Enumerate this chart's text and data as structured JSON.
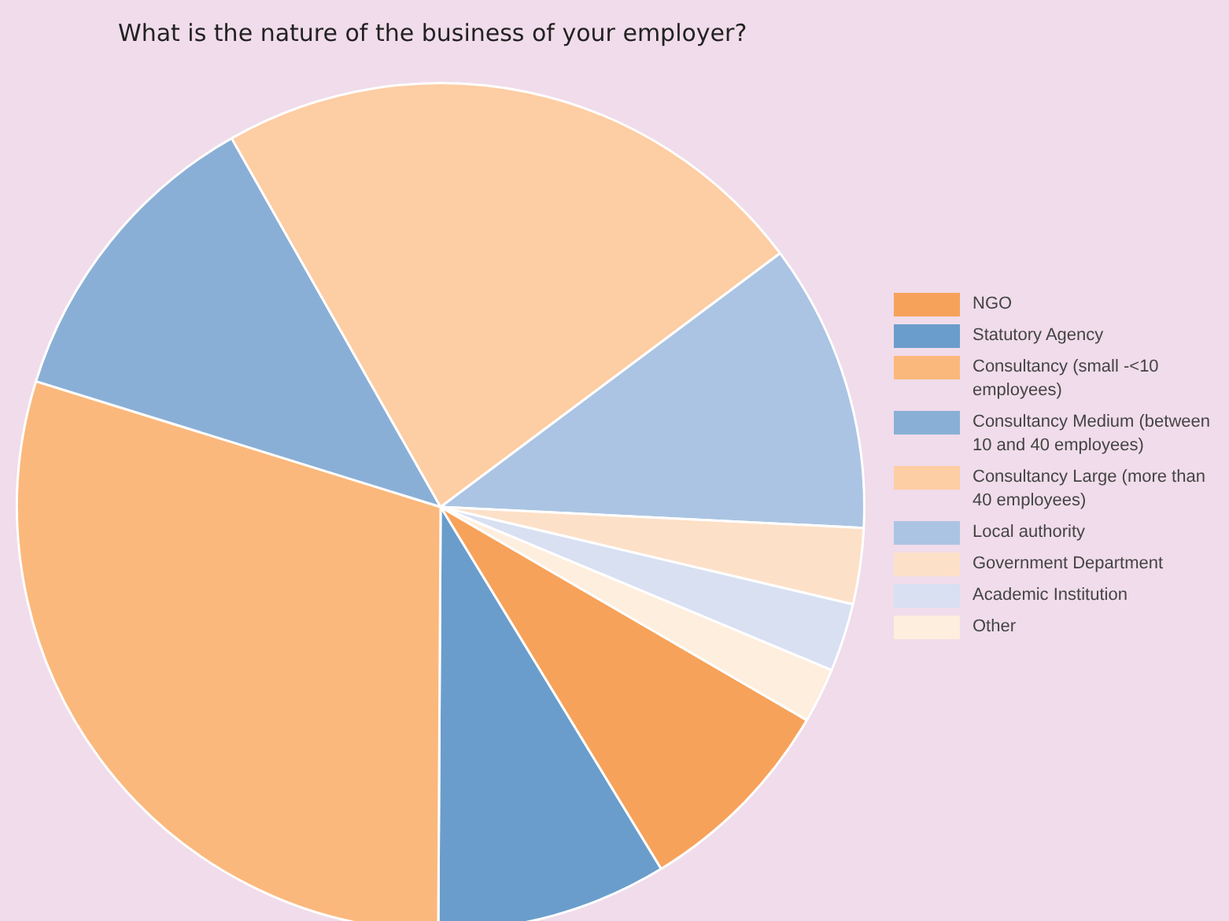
{
  "chart_data": {
    "type": "pie",
    "title": "What is the nature of the business of your employer?",
    "categories": [
      "NGO",
      "Statutory Agency",
      "Consultancy (small -<10 employees)",
      "Consultancy Medium (between 10 and 40 employees)",
      "Consultancy Large (more than 40 employees)",
      "Local authority",
      "Government Department",
      "Academic Institution",
      "Other"
    ],
    "values": [
      7.9,
      8.8,
      29.7,
      12,
      23,
      11,
      2.9,
      2.6,
      2.1
    ],
    "colors": [
      "#f7a25a",
      "#6a9dcb",
      "#fbb87c",
      "#8aafd6",
      "#fdcda3",
      "#abc4e3",
      "#fde0c8",
      "#d8e0f2",
      "#feeedd"
    ],
    "legend": "right"
  }
}
